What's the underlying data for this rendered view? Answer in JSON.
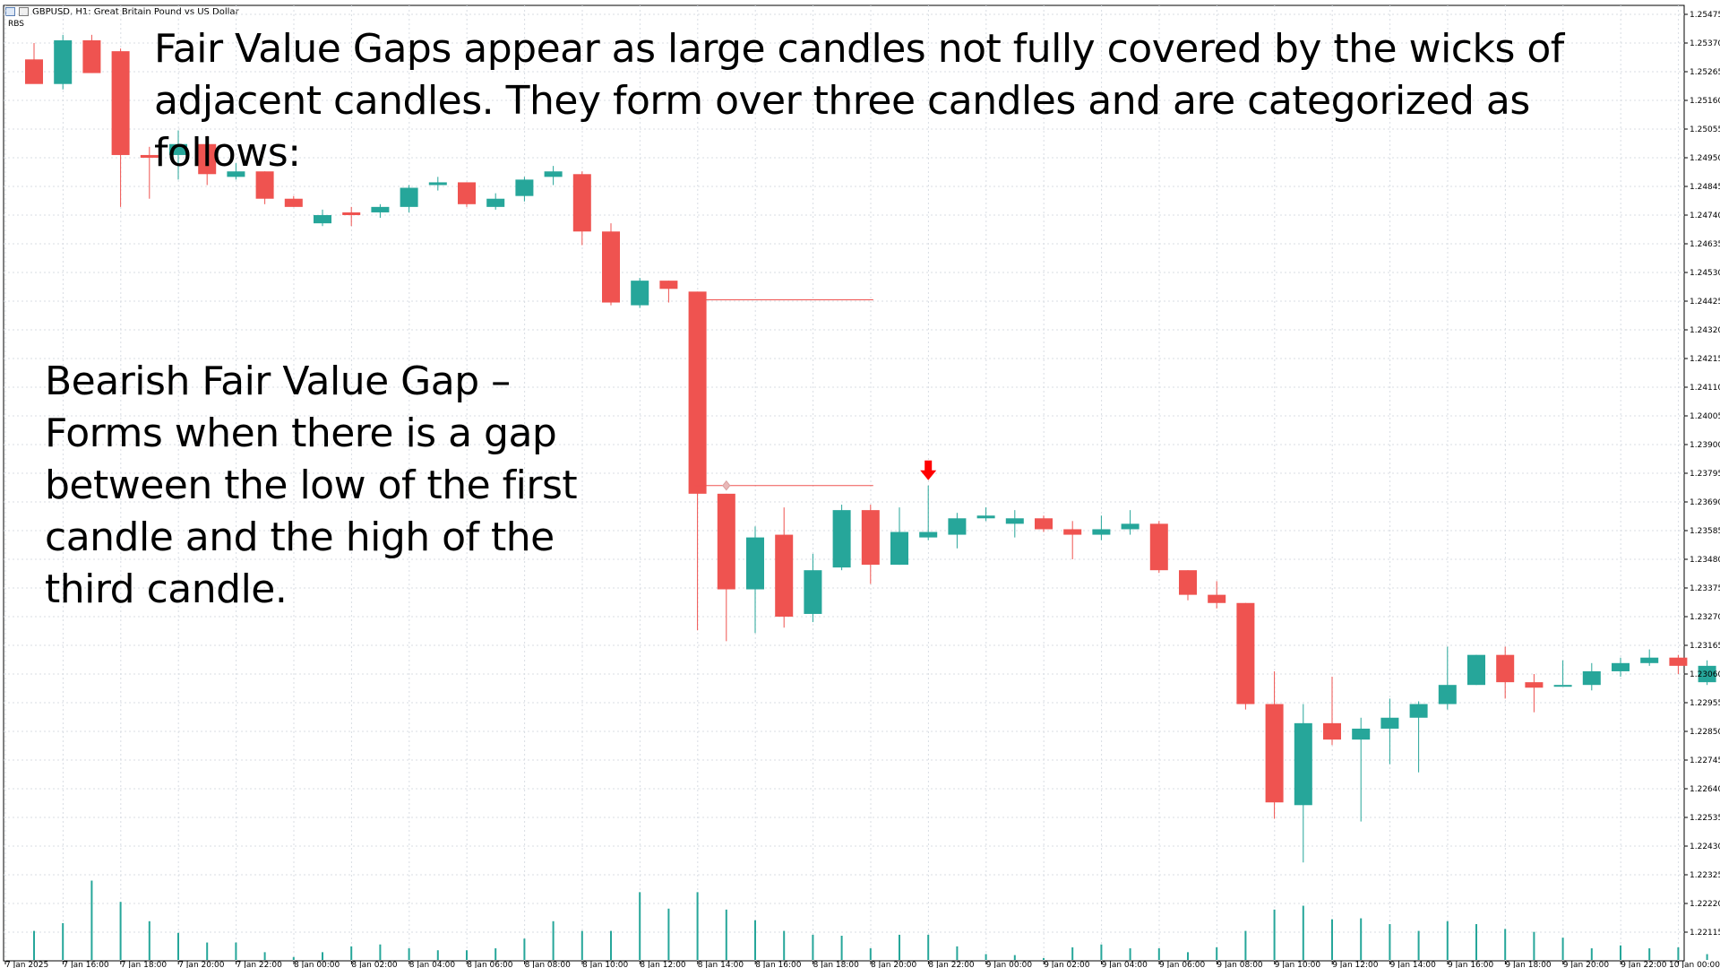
{
  "window": {
    "title": "GBPUSD, H1:  Great Britain Pound vs US Dollar",
    "indicator_tag": "RBS"
  },
  "annotations": {
    "headline": "Fair Value Gaps appear as large candles not fully covered by the wicks of adjacent candles. They form over three candles and are categorized as follows:",
    "explanation": "Bearish Fair Value Gap – Forms when there is a gap between the low of the first candle and the high of the third candle."
  },
  "colors": {
    "bull": "#26a69a",
    "bear": "#ef5350",
    "volume": "#26a69a",
    "grid": "#d8dde3",
    "fvg_line": "#ef5350",
    "signal_arrow": "#ff0000"
  },
  "chart_data": {
    "type": "candlestick",
    "symbol": "GBPUSD",
    "timeframe": "H1",
    "y_ticks": [
      "1.25475",
      "1.25370",
      "1.25265",
      "1.25160",
      "1.25055",
      "1.24950",
      "1.24845",
      "1.24740",
      "1.24635",
      "1.24530",
      "1.24425",
      "1.24320",
      "1.24215",
      "1.24110",
      "1.24005",
      "1.23900",
      "1.23795",
      "1.23690",
      "1.23585",
      "1.23480",
      "1.23375",
      "1.23270",
      "1.23165",
      "1.23060",
      "1.22955",
      "1.22850",
      "1.22745",
      "1.22640",
      "1.22535",
      "1.22430",
      "1.22325",
      "1.22220",
      "1.22115"
    ],
    "ylim": [
      1.2206,
      1.255
    ],
    "x_labels": [
      "7 Jan 2025",
      "7 Jan 16:00",
      "7 Jan 18:00",
      "7 Jan 20:00",
      "7 Jan 22:00",
      "8 Jan 00:00",
      "8 Jan 02:00",
      "8 Jan 04:00",
      "8 Jan 06:00",
      "8 Jan 08:00",
      "8 Jan 10:00",
      "8 Jan 12:00",
      "8 Jan 14:00",
      "8 Jan 16:00",
      "8 Jan 18:00",
      "8 Jan 20:00",
      "8 Jan 22:00",
      "9 Jan 00:00",
      "9 Jan 02:00",
      "9 Jan 04:00",
      "9 Jan 06:00",
      "9 Jan 08:00",
      "9 Jan 10:00",
      "9 Jan 12:00",
      "9 Jan 14:00",
      "9 Jan 16:00",
      "9 Jan 18:00",
      "9 Jan 20:00",
      "9 Jan 22:00",
      "10 Jan 00:00"
    ],
    "candles": [
      {
        "o": 1.2531,
        "h": 1.2537,
        "l": 1.2523,
        "c": 1.2522
      },
      {
        "o": 1.2522,
        "h": 1.254,
        "l": 1.252,
        "c": 1.2538
      },
      {
        "o": 1.2538,
        "h": 1.254,
        "l": 1.2526,
        "c": 1.2526
      },
      {
        "o": 1.2534,
        "h": 1.2535,
        "l": 1.2477,
        "c": 1.2496
      },
      {
        "o": 1.2496,
        "h": 1.2499,
        "l": 1.248,
        "c": 1.2495
      },
      {
        "o": 1.2496,
        "h": 1.2505,
        "l": 1.2487,
        "c": 1.25
      },
      {
        "o": 1.25,
        "h": 1.2503,
        "l": 1.2485,
        "c": 1.2489
      },
      {
        "o": 1.2488,
        "h": 1.2493,
        "l": 1.2487,
        "c": 1.249
      },
      {
        "o": 1.249,
        "h": 1.249,
        "l": 1.2478,
        "c": 1.248
      },
      {
        "o": 1.248,
        "h": 1.2481,
        "l": 1.2477,
        "c": 1.2477
      },
      {
        "o": 1.2471,
        "h": 1.2476,
        "l": 1.247,
        "c": 1.2474
      },
      {
        "o": 1.2475,
        "h": 1.2477,
        "l": 1.247,
        "c": 1.2474
      },
      {
        "o": 1.2475,
        "h": 1.2478,
        "l": 1.2473,
        "c": 1.2477
      },
      {
        "o": 1.2477,
        "h": 1.2485,
        "l": 1.2475,
        "c": 1.2484
      },
      {
        "o": 1.2485,
        "h": 1.2488,
        "l": 1.2483,
        "c": 1.2486
      },
      {
        "o": 1.2486,
        "h": 1.2486,
        "l": 1.2477,
        "c": 1.2478
      },
      {
        "o": 1.2477,
        "h": 1.2482,
        "l": 1.2476,
        "c": 1.248
      },
      {
        "o": 1.2481,
        "h": 1.2488,
        "l": 1.2479,
        "c": 1.2487
      },
      {
        "o": 1.2488,
        "h": 1.2492,
        "l": 1.2485,
        "c": 1.249
      },
      {
        "o": 1.2489,
        "h": 1.249,
        "l": 1.2463,
        "c": 1.2468
      },
      {
        "o": 1.2468,
        "h": 1.2471,
        "l": 1.2441,
        "c": 1.2442
      },
      {
        "o": 1.2441,
        "h": 1.2451,
        "l": 1.244,
        "c": 1.245
      },
      {
        "o": 1.245,
        "h": 1.245,
        "l": 1.2442,
        "c": 1.2447
      },
      {
        "o": 1.2446,
        "h": 1.2446,
        "l": 1.2322,
        "c": 1.2372
      },
      {
        "o": 1.2372,
        "h": 1.2372,
        "l": 1.2318,
        "c": 1.2337
      },
      {
        "o": 1.2337,
        "h": 1.236,
        "l": 1.2321,
        "c": 1.2356
      },
      {
        "o": 1.2357,
        "h": 1.2367,
        "l": 1.2323,
        "c": 1.2327
      },
      {
        "o": 1.2328,
        "h": 1.235,
        "l": 1.2325,
        "c": 1.2344
      },
      {
        "o": 1.2345,
        "h": 1.2368,
        "l": 1.2344,
        "c": 1.2366
      },
      {
        "o": 1.2366,
        "h": 1.2368,
        "l": 1.2339,
        "c": 1.2346
      },
      {
        "o": 1.2346,
        "h": 1.2367,
        "l": 1.2346,
        "c": 1.2358
      },
      {
        "o": 1.2356,
        "h": 1.2375,
        "l": 1.2355,
        "c": 1.2358
      },
      {
        "o": 1.2357,
        "h": 1.2365,
        "l": 1.2352,
        "c": 1.2363
      },
      {
        "o": 1.2363,
        "h": 1.2367,
        "l": 1.2362,
        "c": 1.2364
      },
      {
        "o": 1.2361,
        "h": 1.2366,
        "l": 1.2356,
        "c": 1.2363
      },
      {
        "o": 1.2363,
        "h": 1.2364,
        "l": 1.2358,
        "c": 1.2359
      },
      {
        "o": 1.2359,
        "h": 1.2362,
        "l": 1.2348,
        "c": 1.2357
      },
      {
        "o": 1.2357,
        "h": 1.2364,
        "l": 1.2355,
        "c": 1.2359
      },
      {
        "o": 1.2359,
        "h": 1.2366,
        "l": 1.2357,
        "c": 1.2361
      },
      {
        "o": 1.2361,
        "h": 1.2362,
        "l": 1.2343,
        "c": 1.2344
      },
      {
        "o": 1.2344,
        "h": 1.2344,
        "l": 1.2333,
        "c": 1.2335
      },
      {
        "o": 1.2335,
        "h": 1.234,
        "l": 1.233,
        "c": 1.2332
      },
      {
        "o": 1.2332,
        "h": 1.2332,
        "l": 1.2293,
        "c": 1.2295
      },
      {
        "o": 1.2295,
        "h": 1.2307,
        "l": 1.2253,
        "c": 1.2259
      },
      {
        "o": 1.2258,
        "h": 1.2295,
        "l": 1.2237,
        "c": 1.2288
      },
      {
        "o": 1.2288,
        "h": 1.2305,
        "l": 1.228,
        "c": 1.2282
      },
      {
        "o": 1.2282,
        "h": 1.229,
        "l": 1.2252,
        "c": 1.2286
      },
      {
        "o": 1.2286,
        "h": 1.2297,
        "l": 1.2273,
        "c": 1.229
      },
      {
        "o": 1.229,
        "h": 1.2296,
        "l": 1.227,
        "c": 1.2295
      },
      {
        "o": 1.2295,
        "h": 1.2316,
        "l": 1.2293,
        "c": 1.2302
      },
      {
        "o": 1.2302,
        "h": 1.2313,
        "l": 1.2302,
        "c": 1.2313
      },
      {
        "o": 1.2313,
        "h": 1.2316,
        "l": 1.2297,
        "c": 1.2303
      },
      {
        "o": 1.2303,
        "h": 1.2306,
        "l": 1.2292,
        "c": 1.2301
      },
      {
        "o": 1.2302,
        "h": 1.2311,
        "l": 1.2302,
        "c": 1.2302
      },
      {
        "o": 1.2302,
        "h": 1.231,
        "l": 1.23,
        "c": 1.2307
      },
      {
        "o": 1.2307,
        "h": 1.2312,
        "l": 1.2305,
        "c": 1.231
      },
      {
        "o": 1.231,
        "h": 1.2315,
        "l": 1.2309,
        "c": 1.2312
      },
      {
        "o": 1.2312,
        "h": 1.2313,
        "l": 1.2306,
        "c": 1.2309
      },
      {
        "o": 1.2303,
        "h": 1.2311,
        "l": 1.2302,
        "c": 1.2309
      }
    ],
    "volume": [
      0.3,
      0.38,
      0.82,
      0.6,
      0.4,
      0.28,
      0.18,
      0.18,
      0.08,
      0.03,
      0.08,
      0.14,
      0.16,
      0.12,
      0.1,
      0.1,
      0.12,
      0.22,
      0.4,
      0.3,
      0.3,
      0.7,
      0.53,
      0.7,
      0.52,
      0.41,
      0.3,
      0.26,
      0.25,
      0.12,
      0.26,
      0.26,
      0.14,
      0.06,
      0.05,
      0.02,
      0.13,
      0.16,
      0.12,
      0.12,
      0.08,
      0.13,
      0.3,
      0.52,
      0.56,
      0.42,
      0.43,
      0.37,
      0.3,
      0.4,
      0.37,
      0.32,
      0.29,
      0.23,
      0.12,
      0.15,
      0.12,
      0.13,
      0.06
    ],
    "fair_value_gap": {
      "type": "bearish",
      "first_candle": 22,
      "gap_candle": 23,
      "third_candle": 24,
      "upper": 1.2443,
      "lower": 1.2375,
      "end_candle": 29,
      "signal_candle": 31
    }
  }
}
